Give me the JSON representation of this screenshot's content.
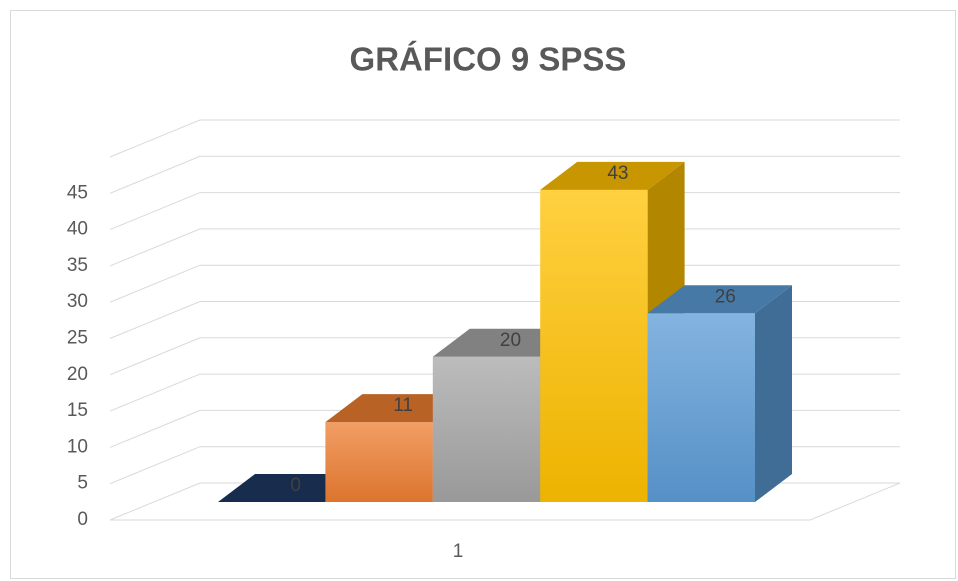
{
  "chart_data": {
    "type": "bar3d",
    "title": "GRÁFICO 9 SPSS",
    "categories": [
      "1"
    ],
    "series": [
      {
        "color": "#1f3864",
        "values": [
          0
        ]
      },
      {
        "color": "#ed7d31",
        "values": [
          11
        ]
      },
      {
        "color": "#a5a5a5",
        "values": [
          20
        ]
      },
      {
        "color": "#ffc000",
        "values": [
          43
        ]
      },
      {
        "color": "#5b9bd5",
        "values": [
          26
        ]
      }
    ],
    "ylim": [
      0,
      50
    ],
    "yticks": [
      0,
      5,
      10,
      15,
      20,
      25,
      30,
      35,
      40,
      45
    ],
    "grid": true
  }
}
